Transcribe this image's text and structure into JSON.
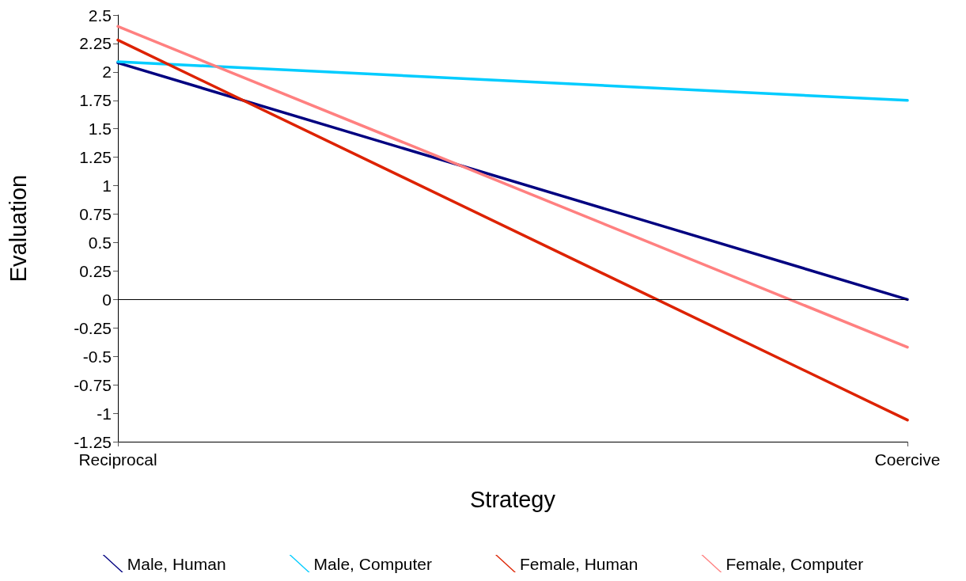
{
  "chart_data": {
    "type": "line",
    "xlabel": "Strategy",
    "ylabel": "Evaluation",
    "categories": [
      "Reciprocal",
      "Coercive"
    ],
    "series": [
      {
        "name": "Male, Human",
        "color": "#000080",
        "values": [
          2.08,
          0
        ]
      },
      {
        "name": "Male, Computer",
        "color": "#00ccff",
        "values": [
          2.09,
          1.75
        ]
      },
      {
        "name": "Female, Human",
        "color": "#dd2200",
        "values": [
          2.28,
          -1.06
        ]
      },
      {
        "name": "Female, Computer",
        "color": "#ff8080",
        "values": [
          2.4,
          -0.42
        ]
      }
    ],
    "ylim": [
      -1.25,
      2.5
    ],
    "yticks": [
      -1.25,
      -1,
      -0.75,
      -0.5,
      -0.25,
      0,
      0.25,
      0.5,
      0.75,
      1,
      1.25,
      1.5,
      1.75,
      2,
      2.25,
      2.5
    ],
    "ref_lines": [
      {
        "axis": "y",
        "value": 0,
        "color": "#000000"
      }
    ],
    "grid": false,
    "legend": "bottom",
    "marker": "none",
    "line_style": "solid"
  }
}
